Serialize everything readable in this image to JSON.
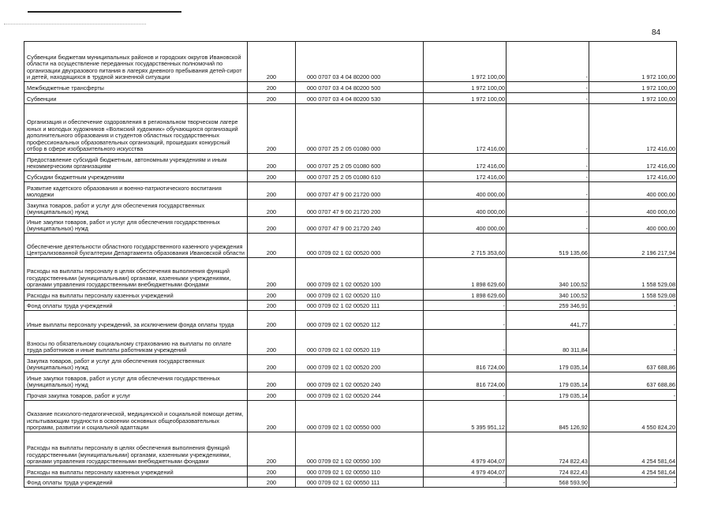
{
  "page_number": "84",
  "rows": [
    {
      "name": "Субвенции бюджетам муниципальных районов и городских округов Ивановской области на осуществление переданных государственных полномочий по организации двухразового питания в лагерях дневного пребывания детей-сирот и детей, находящихся в трудной жизненной ситуации",
      "line": "200",
      "code": "000 0707 03 4 04 80200 000",
      "approved": "1 972 100,00",
      "executed": "-",
      "unexecuted": "1 972 100,00"
    },
    {
      "name": "Межбюджетные трансферты",
      "line": "200",
      "code": "000 0707 03 4 04 80200 500",
      "approved": "1 972 100,00",
      "executed": "-",
      "unexecuted": "1 972 100,00"
    },
    {
      "name": "Субвенции",
      "line": "200",
      "code": "000 0707 03 4 04 80200 530",
      "approved": "1 972 100,00",
      "executed": "-",
      "unexecuted": "1 972 100,00"
    },
    {
      "name": "Организация и обеспечение оздоровления в региональном творческом лагере юных и молодых художников «Волжский художник» обучающихся организаций дополнительного образования и студентов областных государственных профессиональных образовательных организаций, прошедших конкурсный отбор в сфере изобразительного искусства",
      "line": "200",
      "code": "000 0707 25 2 05 01080 000",
      "approved": "172 416,00",
      "executed": "-",
      "unexecuted": "172 416,00"
    },
    {
      "name": "Предоставление субсидий бюджетным, автономным учреждениям и иным некоммерческим организациям",
      "line": "200",
      "code": "000 0707 25 2 05 01080 600",
      "approved": "172 416,00",
      "executed": "-",
      "unexecuted": "172 416,00"
    },
    {
      "name": "Субсидии бюджетным учреждениям",
      "line": "200",
      "code": "000 0707 25 2 05 01080 610",
      "approved": "172 416,00",
      "executed": "-",
      "unexecuted": "172 416,00"
    },
    {
      "name": "Развитие кадетского образования и военно-патриотического воспитания молодежи",
      "line": "200",
      "code": "000 0707 47 9 00 21720 000",
      "approved": "400 000,00",
      "executed": "-",
      "unexecuted": "400 000,00"
    },
    {
      "name": "Закупка товаров, работ и услуг для обеспечения государственных (муниципальных) нужд",
      "line": "200",
      "code": "000 0707 47 9 00 21720 200",
      "approved": "400 000,00",
      "executed": "-",
      "unexecuted": "400 000,00"
    },
    {
      "name": "Иные закупки товаров, работ и услуг для обеспечения государственных (муниципальных) нужд",
      "line": "200",
      "code": "000 0707 47 9 00 21720 240",
      "approved": "400 000,00",
      "executed": "-",
      "unexecuted": "400 000,00"
    },
    {
      "name": "Обеспечение деятельности областного государственного казенного учреждения Централизованной бухгалтерии Департамента образования Ивановской области",
      "line": "200",
      "code": "000 0709 02 1 02 00520 000",
      "approved": "2 715 353,60",
      "executed": "519 135,66",
      "unexecuted": "2 196 217,94"
    },
    {
      "name": "Расходы на выплаты персоналу в целях обеспечения выполнения функций государственными (муниципальными) органами, казенными учреждениями, органами управления государственными внебюджетными фондами",
      "line": "200",
      "code": "000 0709 02 1 02 00520 100",
      "approved": "1 898 629,60",
      "executed": "340 100,52",
      "unexecuted": "1 558 529,08"
    },
    {
      "name": "Расходы на выплаты персоналу казенных учреждений",
      "line": "200",
      "code": "000 0709 02 1 02 00520 110",
      "approved": "1 898 629,60",
      "executed": "340 100,52",
      "unexecuted": "1 558 529,08"
    },
    {
      "name": "Фонд оплаты труда учреждений",
      "line": "200",
      "code": "000 0709 02 1 02 00520 111",
      "approved": "-",
      "executed": "259 346,91",
      "unexecuted": "-"
    },
    {
      "name": "Иные выплаты персоналу учреждений, за исключением фонда оплаты труда",
      "line": "200",
      "code": "000 0709 02 1 02 00520 112",
      "approved": "-",
      "executed": "441,77",
      "unexecuted": "-"
    },
    {
      "name": "Взносы по обязательному социальному страхованию на выплаты по оплате труда работников и иные выплаты работникам учреждений",
      "line": "200",
      "code": "000 0709 02 1 02 00520 119",
      "approved": "-",
      "executed": "80 311,84",
      "unexecuted": "-"
    },
    {
      "name": "Закупка товаров, работ и услуг для обеспечения государственных (муниципальных) нужд",
      "line": "200",
      "code": "000 0709 02 1 02 00520 200",
      "approved": "816 724,00",
      "executed": "179 035,14",
      "unexecuted": "637 688,86"
    },
    {
      "name": "Иные закупки товаров, работ и услуг для обеспечения государственных (муниципальных) нужд",
      "line": "200",
      "code": "000 0709 02 1 02 00520 240",
      "approved": "816 724,00",
      "executed": "179 035,14",
      "unexecuted": "637 688,86"
    },
    {
      "name": "Прочая закупка товаров, работ и услуг",
      "line": "200",
      "code": "000 0709 02 1 02 00520 244",
      "approved": "-",
      "executed": "179 035,14",
      "unexecuted": "-"
    },
    {
      "name": "Оказание психолого-педагогической, медицинской и социальной помощи детям, испытывающим трудности в освоении основных общеобразовательных программ, развитии и социальной адаптации",
      "line": "200",
      "code": "000 0709 02 1 02 00550 000",
      "approved": "5 395 951,12",
      "executed": "845 126,92",
      "unexecuted": "4 550 824,20"
    },
    {
      "name": "Расходы на выплаты персоналу в целях обеспечения выполнения функций государственными (муниципальными) органами, казенными учреждениями, органами управления государственными внебюджетными фондами",
      "line": "200",
      "code": "000 0709 02 1 02 00550 100",
      "approved": "4 979 404,07",
      "executed": "724 822,43",
      "unexecuted": "4 254 581,64"
    },
    {
      "name": "Расходы на выплаты персоналу казенных учреждений",
      "line": "200",
      "code": "000 0709 02 1 02 00550 110",
      "approved": "4 979 404,07",
      "executed": "724 822,43",
      "unexecuted": "4 254 581,64"
    },
    {
      "name": "Фонд оплаты труда учреждений",
      "line": "200",
      "code": "000 0709 02 1 02 00550 111",
      "approved": "-",
      "executed": "568 593,90",
      "unexecuted": "-"
    }
  ]
}
